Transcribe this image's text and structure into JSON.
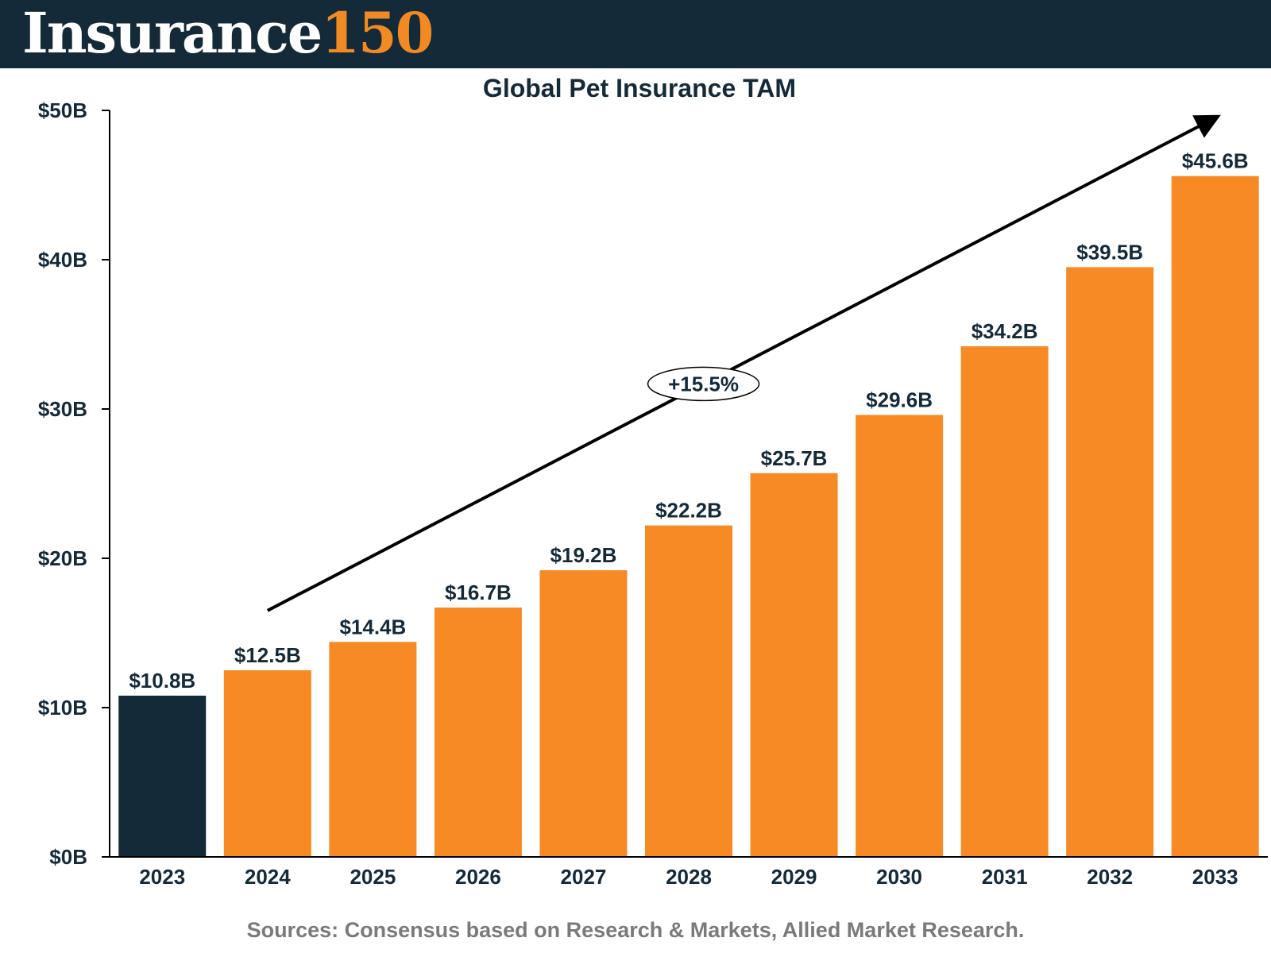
{
  "header": {
    "logo_word": "Insurance",
    "logo_number": "150"
  },
  "chart_data": {
    "type": "bar",
    "title": "Global Pet Insurance TAM",
    "xlabel": "",
    "ylabel": "",
    "categories": [
      "2023",
      "2024",
      "2025",
      "2026",
      "2027",
      "2028",
      "2029",
      "2030",
      "2031",
      "2032",
      "2033"
    ],
    "values": [
      10.8,
      12.5,
      14.4,
      16.7,
      19.2,
      22.2,
      25.7,
      29.6,
      34.2,
      39.5,
      45.6
    ],
    "data_labels": [
      "$10.8B",
      "$12.5B",
      "$14.4B",
      "$16.7B",
      "$19.2B",
      "$22.2B",
      "$25.7B",
      "$29.6B",
      "$34.2B",
      "$39.5B",
      "$45.6B"
    ],
    "ylim": [
      0,
      50
    ],
    "yticks": [
      0,
      10,
      20,
      30,
      40,
      50
    ],
    "ytick_labels": [
      "$0B",
      "$10B",
      "$20B",
      "$30B",
      "$40B",
      "$50B"
    ],
    "grid": false,
    "annotation": "+15.5%",
    "colors": {
      "highlight": "#142a38",
      "bars": "#f88a25"
    }
  },
  "footer": {
    "source": "Sources: Consensus based on Research & Markets, Allied Market Research."
  }
}
